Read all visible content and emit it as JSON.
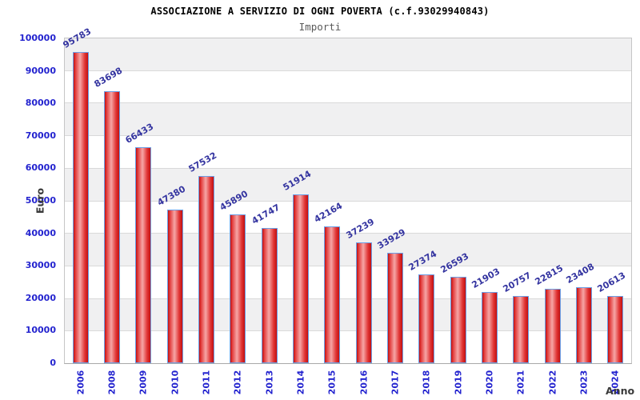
{
  "chart_data": {
    "type": "bar",
    "title": "ASSOCIAZIONE A SERVIZIO DI OGNI POVERTA (c.f.93029940843)",
    "subtitle": "Importi",
    "xlabel": "Anno",
    "ylabel": "Euro",
    "categories": [
      "2006",
      "2008",
      "2009",
      "2010",
      "2011",
      "2012",
      "2013",
      "2014",
      "2015",
      "2016",
      "2017",
      "2018",
      "2019",
      "2020",
      "2021",
      "2022",
      "2023",
      "2024"
    ],
    "values": [
      95783,
      83698,
      66433,
      47380,
      57532,
      45890,
      41747,
      51914,
      42164,
      37239,
      33929,
      27374,
      26593,
      21903,
      20757,
      22815,
      23408,
      20613
    ],
    "ylim": [
      0,
      100000
    ],
    "ytick_step": 10000,
    "yticks": [
      100000,
      90000,
      80000,
      70000,
      60000,
      50000,
      40000,
      30000,
      20000,
      10000,
      0
    ],
    "grid": "horizontal-bands",
    "legend": "none",
    "bar_labels_shown": true,
    "colors": {
      "bar_edge": "#c21010",
      "bar_mid": "#e34040",
      "bar_highlight": "#f6a6a6",
      "bar_border": "#6b9fe6",
      "axis_tick_label": "#2323cf",
      "data_label": "#3434a0",
      "axis_title": "#3a3a3a",
      "band_gray": "#f0f0f1",
      "band_white": "#ffffff",
      "gridline": "#d9d9d9",
      "title": "#000000",
      "subtitle": "#5a5a5a"
    }
  }
}
